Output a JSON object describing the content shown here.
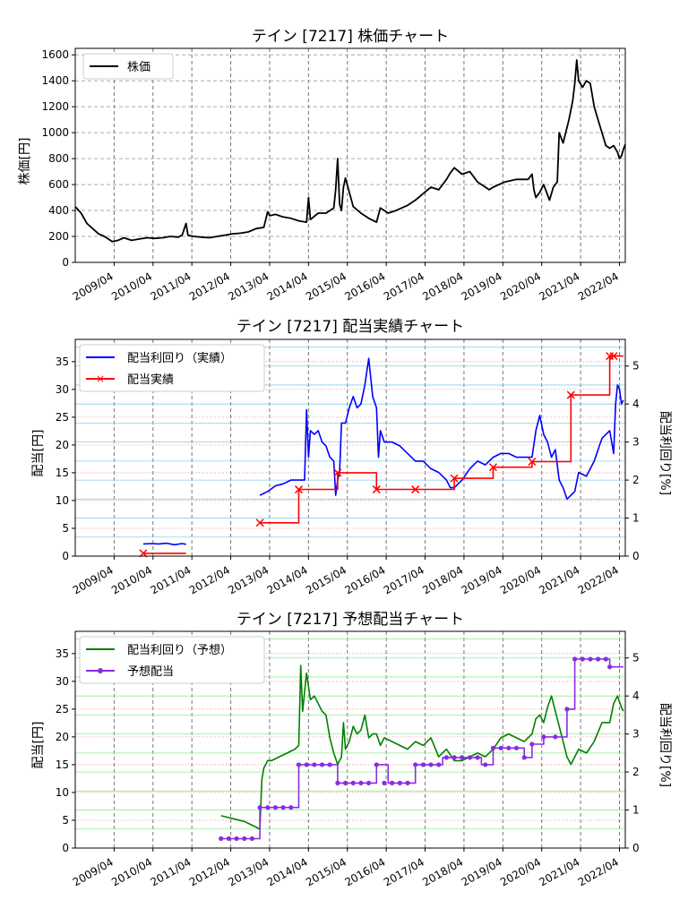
{
  "x_tick_labels": [
    "2009/04",
    "2010/04",
    "2011/04",
    "2012/04",
    "2013/04",
    "2014/04",
    "2015/04",
    "2016/04",
    "2017/04",
    "2018/04",
    "2019/04",
    "2020/04",
    "2021/04",
    "2022/04"
  ],
  "chart_data": [
    {
      "type": "line",
      "title": "テイン [7217]  株価チャート",
      "ylabel": "株価[円]",
      "ylim": [
        0,
        1650
      ],
      "yticks": [
        0,
        200,
        400,
        600,
        800,
        1000,
        1200,
        1400,
        1600
      ],
      "xlim": [
        2008.25,
        2022.4
      ],
      "grid": true,
      "legend_position": "upper-left",
      "colors": {
        "price": "#000000"
      },
      "series": [
        {
          "name": "株価",
          "x": [
            2008.25,
            2008.4,
            2008.55,
            2008.7,
            2008.85,
            2009.0,
            2009.1,
            2009.2,
            2009.35,
            2009.5,
            2009.7,
            2009.9,
            2010.1,
            2010.3,
            2010.5,
            2010.7,
            2010.9,
            2011.0,
            2011.1,
            2011.15,
            2011.3,
            2011.5,
            2011.7,
            2011.9,
            2012.1,
            2012.3,
            2012.5,
            2012.7,
            2012.9,
            2013.1,
            2013.2,
            2013.25,
            2013.4,
            2013.6,
            2013.8,
            2014.0,
            2014.2,
            2014.25,
            2014.3,
            2014.5,
            2014.7,
            2014.9,
            2014.95,
            2015.0,
            2015.05,
            2015.1,
            2015.15,
            2015.2,
            2015.4,
            2015.6,
            2015.8,
            2016.0,
            2016.1,
            2016.2,
            2016.3,
            2016.5,
            2016.8,
            2017.0,
            2017.2,
            2017.4,
            2017.6,
            2017.8,
            2017.9,
            2018.0,
            2018.2,
            2018.4,
            2018.6,
            2018.8,
            2018.9,
            2019.0,
            2019.3,
            2019.6,
            2019.9,
            2020.0,
            2020.05,
            2020.1,
            2020.2,
            2020.3,
            2020.45,
            2020.55,
            2020.6,
            2020.65,
            2020.7,
            2020.8,
            2020.95,
            2021.05,
            2021.1,
            2021.15,
            2021.2,
            2021.3,
            2021.4,
            2021.5,
            2021.6,
            2021.7,
            2021.8,
            2021.9,
            2022.0,
            2022.1,
            2022.2,
            2022.25,
            2022.3,
            2022.35,
            2022.4
          ],
          "y": [
            430,
            380,
            300,
            260,
            220,
            200,
            180,
            160,
            170,
            190,
            170,
            180,
            190,
            185,
            190,
            200,
            195,
            210,
            300,
            210,
            200,
            195,
            190,
            200,
            210,
            220,
            225,
            235,
            260,
            270,
            390,
            360,
            370,
            350,
            340,
            320,
            310,
            500,
            330,
            380,
            380,
            420,
            560,
            800,
            450,
            400,
            580,
            650,
            430,
            380,
            340,
            310,
            420,
            400,
            380,
            400,
            440,
            480,
            530,
            580,
            560,
            640,
            690,
            730,
            680,
            700,
            620,
            580,
            560,
            580,
            620,
            640,
            640,
            680,
            560,
            500,
            540,
            600,
            480,
            580,
            600,
            620,
            1000,
            920,
            1100,
            1250,
            1380,
            1560,
            1400,
            1350,
            1400,
            1380,
            1200,
            1100,
            1000,
            900,
            880,
            900,
            850,
            800,
            820,
            870,
            910
          ]
        }
      ]
    },
    {
      "type": "line",
      "title": "テイン [7217]  配当実績チャート",
      "ylabel": "配当[円]",
      "ylabel_right": "配当利回り[%]",
      "ylim": [
        0,
        39
      ],
      "yticks": [
        0,
        5,
        10,
        15,
        20,
        25,
        30,
        35
      ],
      "ylim_right": [
        0,
        5.7
      ],
      "yticks_right": [
        0,
        1,
        2,
        3,
        4,
        5
      ],
      "xlim": [
        2008.25,
        2022.4
      ],
      "grid": true,
      "legend_position": "upper-left",
      "colors": {
        "yield": "#0000ff",
        "dividend": "#ff0000"
      },
      "series": [
        {
          "name": "配当利回り（実績）",
          "axis": "right",
          "segments": [
            {
              "x": [
                2010.0,
                2010.2,
                2010.4,
                2010.6,
                2010.8,
                2011.0,
                2011.1
              ],
              "y": [
                0.32,
                0.33,
                0.32,
                0.34,
                0.3,
                0.33,
                0.31
              ]
            },
            {
              "x": [
                2013.0,
                2013.2,
                2013.4,
                2013.6,
                2013.8,
                2014.0,
                2014.15,
                2014.2,
                2014.25,
                2014.3,
                2014.4,
                2014.5,
                2014.6,
                2014.7,
                2014.8,
                2014.9,
                2014.95,
                2015.0,
                2015.05,
                2015.1,
                2015.2,
                2015.3,
                2015.4,
                2015.5,
                2015.6,
                2015.7,
                2015.8,
                2015.9,
                2016.0,
                2016.05,
                2016.1,
                2016.2,
                2016.4,
                2016.6,
                2016.8,
                2017.0,
                2017.2,
                2017.4,
                2017.6,
                2017.8,
                2017.9,
                2018.0,
                2018.2,
                2018.4,
                2018.6,
                2018.8,
                2019.0,
                2019.2,
                2019.4,
                2019.6,
                2019.8,
                2020.0,
                2020.1,
                2020.2,
                2020.3,
                2020.4,
                2020.5,
                2020.6,
                2020.7,
                2020.8,
                2020.9,
                2021.0,
                2021.1,
                2021.2,
                2021.4,
                2021.6,
                2021.8,
                2022.0,
                2022.05,
                2022.1,
                2022.15,
                2022.2,
                2022.25,
                2022.3,
                2022.35
              ],
              "y": [
                1.6,
                1.7,
                1.85,
                1.9,
                2.0,
                2.0,
                2.0,
                3.85,
                2.6,
                3.3,
                3.2,
                3.3,
                3.0,
                2.9,
                2.6,
                2.5,
                1.6,
                2.0,
                2.2,
                3.5,
                3.5,
                3.9,
                4.2,
                3.9,
                4.0,
                4.5,
                5.2,
                4.2,
                3.9,
                2.6,
                3.3,
                3.0,
                3.0,
                2.9,
                2.7,
                2.5,
                2.5,
                2.3,
                2.2,
                2.0,
                1.8,
                1.8,
                2.0,
                2.3,
                2.5,
                2.4,
                2.6,
                2.7,
                2.7,
                2.6,
                2.6,
                2.6,
                3.3,
                3.7,
                3.2,
                3.0,
                2.6,
                2.8,
                2.0,
                1.8,
                1.5,
                1.6,
                1.7,
                2.2,
                2.1,
                2.5,
                3.1,
                3.3,
                3.0,
                2.7,
                4.0,
                4.5,
                4.4,
                4.0,
                4.1
              ]
            }
          ]
        },
        {
          "name": "配当実績",
          "axis": "left",
          "step": true,
          "segments": [
            {
              "x": [
                2010.0,
                2011.1
              ],
              "y": [
                0.5,
                0.5
              ]
            },
            {
              "x": [
                2013.0,
                2014.0,
                2014.0,
                2015.0,
                2015.0,
                2016.0,
                2016.0,
                2017.0,
                2018.0,
                2018.0,
                2019.0,
                2019.0,
                2020.0,
                2020.0,
                2021.0,
                2021.0,
                2022.0,
                2022.0,
                2022.35
              ],
              "y": [
                6,
                6,
                12,
                12,
                15,
                15,
                12,
                12,
                12,
                14,
                14,
                16,
                16,
                17,
                17,
                29,
                29,
                36,
                36
              ]
            }
          ],
          "markers_x": [
            2010.0,
            2013.0,
            2014.0,
            2015.0,
            2016.0,
            2017.0,
            2018.0,
            2019.0,
            2020.0,
            2021.0,
            2022.0,
            2022.1
          ],
          "markers_y": [
            0.5,
            6,
            12,
            15,
            12,
            12,
            14,
            16,
            17,
            29,
            36,
            36
          ]
        }
      ]
    },
    {
      "type": "line",
      "title": "テイン [7217]  予想配当チャート",
      "ylabel": "配当[円]",
      "ylabel_right": "配当利回り[%]",
      "ylim": [
        0,
        39
      ],
      "yticks": [
        0,
        5,
        10,
        15,
        20,
        25,
        30,
        35
      ],
      "ylim_right": [
        0,
        5.7
      ],
      "yticks_right": [
        0,
        1,
        2,
        3,
        4,
        5
      ],
      "xlim": [
        2008.25,
        2022.4
      ],
      "grid": true,
      "legend_position": "upper-left",
      "colors": {
        "yield": "#008000",
        "forecast": "#8a2be2"
      },
      "series": [
        {
          "name": "配当利回り（予想）",
          "axis": "right",
          "segments": [
            {
              "x": [
                2012.0,
                2012.2,
                2012.4,
                2012.6,
                2012.8,
                2013.0,
                2013.05,
                2013.1,
                2013.2,
                2013.3,
                2013.5,
                2013.7,
                2013.9,
                2014.0,
                2014.05,
                2014.1,
                2014.2,
                2014.3,
                2014.4,
                2014.5,
                2014.6,
                2014.7,
                2014.8,
                2014.9,
                2015.0,
                2015.1,
                2015.15,
                2015.2,
                2015.3,
                2015.4,
                2015.5,
                2015.6,
                2015.7,
                2015.8,
                2015.9,
                2016.0,
                2016.1,
                2016.2,
                2016.4,
                2016.6,
                2016.8,
                2017.0,
                2017.2,
                2017.4,
                2017.6,
                2017.8,
                2018.0,
                2018.2,
                2018.4,
                2018.6,
                2018.8,
                2019.0,
                2019.2,
                2019.4,
                2019.6,
                2019.8,
                2020.0,
                2020.1,
                2020.2,
                2020.3,
                2020.4,
                2020.5,
                2020.6,
                2020.7,
                2020.8,
                2020.9,
                2021.0,
                2021.2,
                2021.4,
                2021.6,
                2021.8,
                2022.0,
                2022.1,
                2022.2,
                2022.3,
                2022.35
              ],
              "y": [
                0.85,
                0.8,
                0.75,
                0.7,
                0.6,
                0.5,
                1.8,
                2.1,
                2.3,
                2.3,
                2.4,
                2.5,
                2.6,
                2.7,
                4.8,
                3.6,
                4.6,
                3.9,
                4.0,
                3.8,
                3.6,
                3.5,
                2.9,
                2.5,
                2.2,
                2.4,
                3.3,
                2.6,
                2.8,
                3.2,
                3.0,
                3.1,
                3.5,
                2.9,
                3.0,
                3.0,
                2.7,
                2.9,
                2.8,
                2.7,
                2.6,
                2.8,
                2.7,
                2.9,
                2.4,
                2.6,
                2.3,
                2.3,
                2.4,
                2.5,
                2.4,
                2.6,
                2.9,
                3.0,
                2.9,
                2.8,
                3.0,
                3.4,
                3.5,
                3.3,
                3.7,
                4.0,
                3.6,
                3.2,
                2.8,
                2.4,
                2.2,
                2.6,
                2.5,
                2.8,
                3.3,
                3.3,
                3.8,
                4.0,
                3.7,
                3.6
              ]
            }
          ]
        },
        {
          "name": "予想配当",
          "axis": "left",
          "step": true,
          "segments": [
            {
              "x": [
                2012.0,
                2013.0,
                2013.0,
                2014.0,
                2014.0,
                2015.0,
                2015.0,
                2016.0,
                2016.0,
                2016.3,
                2016.3,
                2017.0,
                2017.0,
                2017.7,
                2017.7,
                2018.7,
                2018.7,
                2019.0,
                2019.0,
                2019.8,
                2019.8,
                2020.0,
                2020.0,
                2020.3,
                2020.3,
                2020.6,
                2020.6,
                2020.9,
                2020.9,
                2021.1,
                2021.1,
                2022.0,
                2022.0,
                2022.35
              ],
              "y": [
                1.7,
                1.7,
                7.3,
                7.3,
                15,
                15,
                11.7,
                11.7,
                15,
                15,
                11.7,
                11.7,
                15,
                15,
                16.3,
                16.3,
                15,
                15,
                18,
                18,
                16.3,
                16.3,
                18.7,
                18.7,
                20,
                20,
                20,
                20,
                25,
                25,
                34,
                34,
                32.6,
                32.6
              ]
            }
          ],
          "markers_x": [
            2012.0,
            2012.2,
            2012.4,
            2012.6,
            2012.8,
            2013.0,
            2013.2,
            2013.4,
            2013.6,
            2013.8,
            2014.0,
            2014.2,
            2014.4,
            2014.6,
            2014.8,
            2015.0,
            2015.2,
            2015.4,
            2015.6,
            2015.8,
            2016.0,
            2016.2,
            2016.4,
            2016.6,
            2016.8,
            2017.0,
            2017.2,
            2017.4,
            2017.6,
            2017.8,
            2018.0,
            2018.2,
            2018.4,
            2018.6,
            2018.8,
            2019.0,
            2019.2,
            2019.4,
            2019.6,
            2019.8,
            2020.0,
            2020.3,
            2020.6,
            2020.9,
            2021.1,
            2021.3,
            2021.5,
            2021.7,
            2021.9,
            2022.0
          ],
          "markers_y": [
            1.7,
            1.7,
            1.7,
            1.7,
            1.7,
            7.3,
            7.3,
            7.3,
            7.3,
            7.3,
            15,
            15,
            15,
            15,
            15,
            11.7,
            11.7,
            11.7,
            11.7,
            11.7,
            15,
            11.7,
            11.7,
            11.7,
            11.7,
            15,
            15,
            15,
            15,
            16.3,
            16.3,
            16.3,
            16.3,
            16.3,
            15,
            18,
            18,
            18,
            18,
            16.3,
            18.7,
            20,
            20,
            25,
            34,
            34,
            34,
            34,
            34,
            32.6
          ]
        }
      ]
    }
  ]
}
